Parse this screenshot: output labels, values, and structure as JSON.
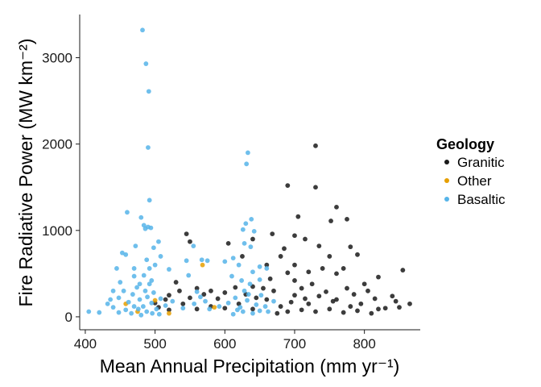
{
  "chart_data": {
    "type": "scatter",
    "title": "",
    "xlabel": "Mean Annual Precipitation (mm yr⁻¹)",
    "ylabel": "Fire Radiative Power (MW km⁻²)",
    "xlim": [
      392,
      880
    ],
    "ylim": [
      -150,
      3500
    ],
    "x_ticks": [
      400,
      500,
      600,
      700,
      800
    ],
    "y_ticks": [
      0,
      1000,
      2000,
      3000
    ],
    "grid": false,
    "legend_title": "Geology",
    "legend_position": "right",
    "series": [
      {
        "name": "Granitic",
        "color": "#1a1a1a",
        "points": [
          [
            730,
            1980
          ],
          [
            690,
            1520
          ],
          [
            730,
            1500
          ],
          [
            760,
            1270
          ],
          [
            705,
            1160
          ],
          [
            752,
            1110
          ],
          [
            775,
            1130
          ],
          [
            668,
            960
          ],
          [
            700,
            940
          ],
          [
            545,
            960
          ],
          [
            715,
            900
          ],
          [
            640,
            900
          ],
          [
            550,
            870
          ],
          [
            605,
            850
          ],
          [
            685,
            790
          ],
          [
            735,
            820
          ],
          [
            780,
            810
          ],
          [
            680,
            700
          ],
          [
            750,
            700
          ],
          [
            790,
            720
          ],
          [
            625,
            700
          ],
          [
            660,
            600
          ],
          [
            700,
            600
          ],
          [
            740,
            560
          ],
          [
            770,
            560
          ],
          [
            820,
            460
          ],
          [
            855,
            540
          ],
          [
            760,
            500
          ],
          [
            720,
            520
          ],
          [
            690,
            510
          ],
          [
            530,
            400
          ],
          [
            560,
            330
          ],
          [
            580,
            300
          ],
          [
            520,
            250
          ],
          [
            600,
            280
          ],
          [
            640,
            350
          ],
          [
            700,
            420
          ],
          [
            800,
            380
          ],
          [
            840,
            240
          ],
          [
            865,
            150
          ],
          [
            850,
            110
          ],
          [
            820,
            90
          ],
          [
            780,
            120
          ],
          [
            760,
            200
          ],
          [
            720,
            150
          ],
          [
            700,
            250
          ],
          [
            680,
            120
          ],
          [
            660,
            200
          ],
          [
            640,
            90
          ],
          [
            620,
            150
          ],
          [
            600,
            100
          ],
          [
            580,
            120
          ],
          [
            560,
            90
          ],
          [
            540,
            150
          ],
          [
            520,
            80
          ],
          [
            505,
            110
          ],
          [
            690,
            60
          ],
          [
            710,
            80
          ],
          [
            730,
            60
          ],
          [
            750,
            90
          ],
          [
            770,
            50
          ],
          [
            790,
            70
          ],
          [
            810,
            40
          ],
          [
            830,
            100
          ],
          [
            670,
            300
          ],
          [
            710,
            330
          ],
          [
            745,
            290
          ],
          [
            785,
            260
          ],
          [
            815,
            210
          ],
          [
            845,
            180
          ],
          [
            675,
            40
          ],
          [
            695,
            170
          ],
          [
            715,
            210
          ],
          [
            735,
            240
          ],
          [
            755,
            180
          ],
          [
            775,
            330
          ],
          [
            795,
            150
          ],
          [
            805,
            300
          ],
          [
            725,
            380
          ],
          [
            665,
            440
          ],
          [
            655,
            330
          ],
          [
            645,
            220
          ],
          [
            630,
            260
          ],
          [
            615,
            340
          ],
          [
            590,
            210
          ],
          [
            570,
            260
          ],
          [
            550,
            220
          ],
          [
            535,
            300
          ],
          [
            515,
            200
          ],
          [
            500,
            160
          ]
        ]
      },
      {
        "name": "Other",
        "color": "#e69f00",
        "points": [
          [
            568,
            600
          ],
          [
            458,
            150
          ],
          [
            500,
            190
          ],
          [
            585,
            110
          ],
          [
            475,
            60
          ],
          [
            520,
            40
          ]
        ]
      },
      {
        "name": "Basaltic",
        "color": "#56b4e9",
        "points": [
          [
            482,
            3320
          ],
          [
            487,
            2930
          ],
          [
            491,
            2610
          ],
          [
            490,
            1960
          ],
          [
            633,
            1900
          ],
          [
            631,
            1770
          ],
          [
            492,
            1350
          ],
          [
            460,
            1210
          ],
          [
            480,
            1150
          ],
          [
            484,
            1060
          ],
          [
            490,
            1040
          ],
          [
            486,
            1020
          ],
          [
            494,
            1030
          ],
          [
            638,
            1130
          ],
          [
            630,
            1080
          ],
          [
            626,
            1010
          ],
          [
            642,
            990
          ],
          [
            505,
            870
          ],
          [
            628,
            850
          ],
          [
            555,
            820
          ],
          [
            472,
            820
          ],
          [
            498,
            800
          ],
          [
            637,
            810
          ],
          [
            453,
            740
          ],
          [
            458,
            720
          ],
          [
            508,
            700
          ],
          [
            545,
            650
          ],
          [
            567,
            660
          ],
          [
            575,
            650
          ],
          [
            612,
            680
          ],
          [
            600,
            640
          ],
          [
            620,
            600
          ],
          [
            650,
            580
          ],
          [
            660,
            560
          ],
          [
            500,
            600
          ],
          [
            470,
            560
          ],
          [
            445,
            560
          ],
          [
            520,
            550
          ],
          [
            640,
            520
          ],
          [
            470,
            470
          ],
          [
            450,
            400
          ],
          [
            495,
            420
          ],
          [
            548,
            480
          ],
          [
            610,
            470
          ],
          [
            650,
            430
          ],
          [
            405,
            60
          ],
          [
            420,
            50
          ],
          [
            432,
            150
          ],
          [
            440,
            110
          ],
          [
            448,
            220
          ],
          [
            455,
            300
          ],
          [
            462,
            170
          ],
          [
            468,
            260
          ],
          [
            474,
            340
          ],
          [
            478,
            200
          ],
          [
            483,
            120
          ],
          [
            486,
            300
          ],
          [
            489,
            230
          ],
          [
            492,
            380
          ],
          [
            495,
            160
          ],
          [
            498,
            280
          ],
          [
            502,
            90
          ],
          [
            508,
            210
          ],
          [
            515,
            130
          ],
          [
            525,
            180
          ],
          [
            540,
            100
          ],
          [
            556,
            150
          ],
          [
            560,
            290
          ],
          [
            565,
            230
          ],
          [
            572,
            180
          ],
          [
            578,
            90
          ],
          [
            592,
            120
          ],
          [
            605,
            160
          ],
          [
            615,
            220
          ],
          [
            622,
            110
          ],
          [
            628,
            300
          ],
          [
            632,
            190
          ],
          [
            636,
            380
          ],
          [
            645,
            140
          ],
          [
            652,
            250
          ],
          [
            658,
            120
          ],
          [
            662,
            60
          ],
          [
            670,
            180
          ],
          [
            448,
            50
          ],
          [
            458,
            80
          ],
          [
            466,
            40
          ],
          [
            476,
            90
          ],
          [
            480,
            20
          ],
          [
            488,
            60
          ],
          [
            496,
            40
          ],
          [
            506,
            30
          ],
          [
            640,
            40
          ],
          [
            626,
            60
          ],
          [
            612,
            30
          ],
          [
            618,
            80
          ],
          [
            650,
            70
          ],
          [
            470,
            120
          ],
          [
            484,
            480
          ],
          [
            478,
            380
          ],
          [
            492,
            560
          ],
          [
            488,
            660
          ],
          [
            624,
            420
          ],
          [
            634,
            260
          ],
          [
            440,
            300
          ],
          [
            436,
            200
          ]
        ]
      }
    ]
  }
}
